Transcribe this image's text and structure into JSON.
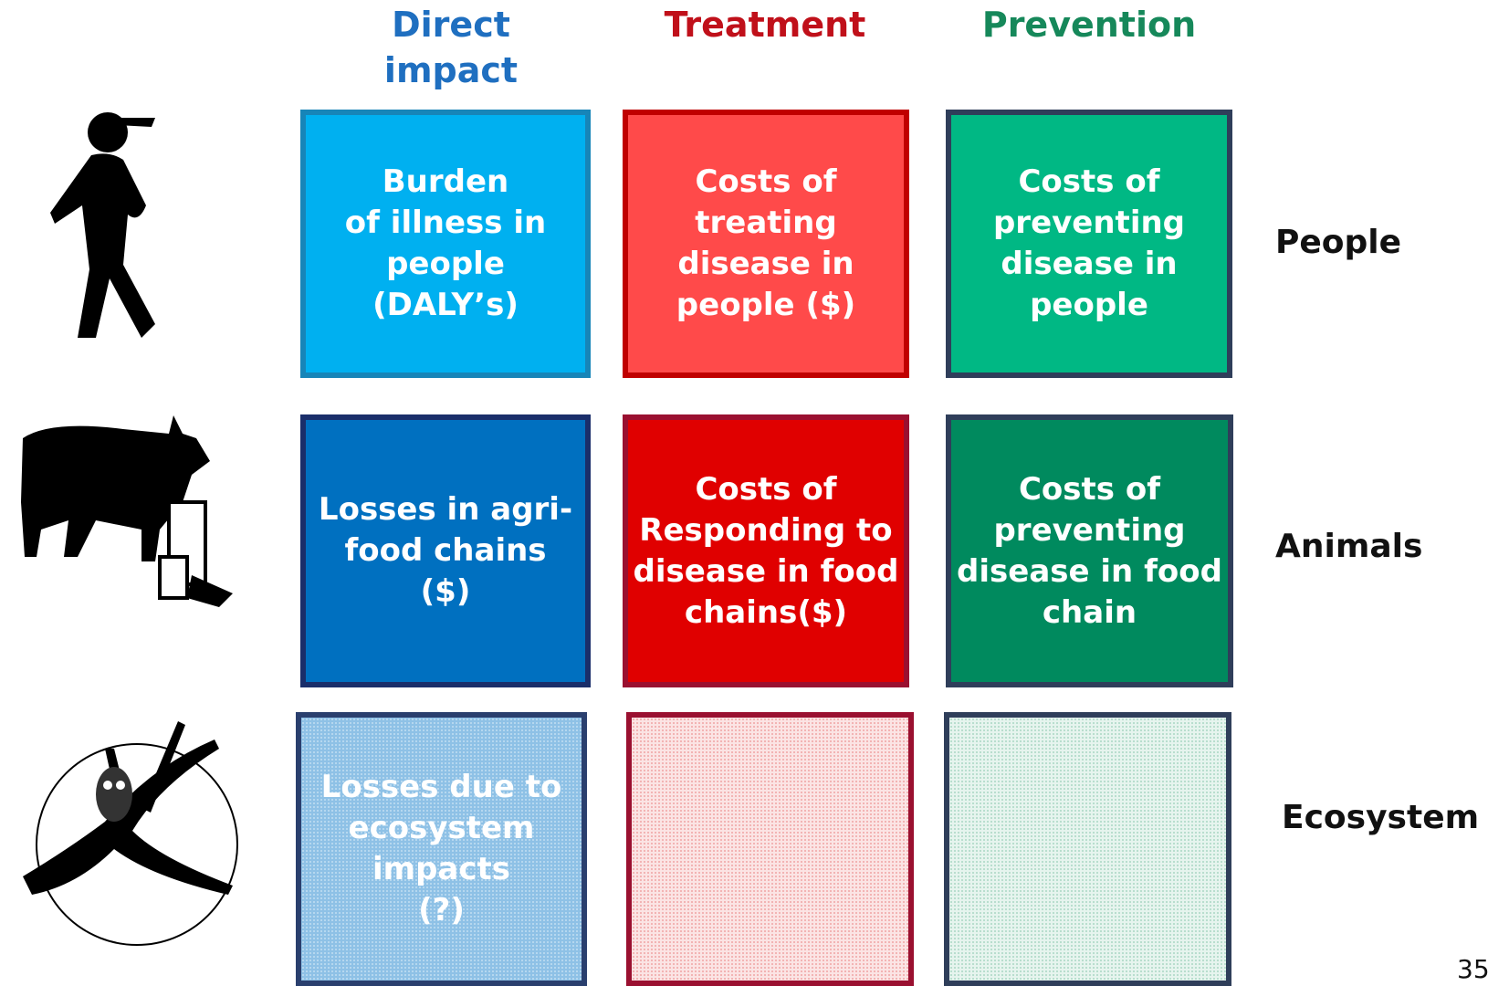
{
  "headers": {
    "columns": [
      "Direct\nimpact",
      "Treatment",
      "Prevention"
    ]
  },
  "rows": [
    {
      "label": "People",
      "cells": [
        "Burden\nof illness in\npeople\n(DALY’s)",
        "Costs of treating\ndisease in\npeople ($)",
        "Costs of\npreventing\ndisease in\npeople"
      ]
    },
    {
      "label": "Animals",
      "cells": [
        "Losses in agri-\nfood chains\n($)",
        "Costs of\nResponding to\ndisease in food\nchains($)",
        "Costs of\npreventing\ndisease in food\nchain"
      ]
    },
    {
      "label": "Ecosystem",
      "cells": [
        "Losses due to\necosystem\nimpacts\n(?)"
      ]
    }
  ],
  "page_number": "35"
}
